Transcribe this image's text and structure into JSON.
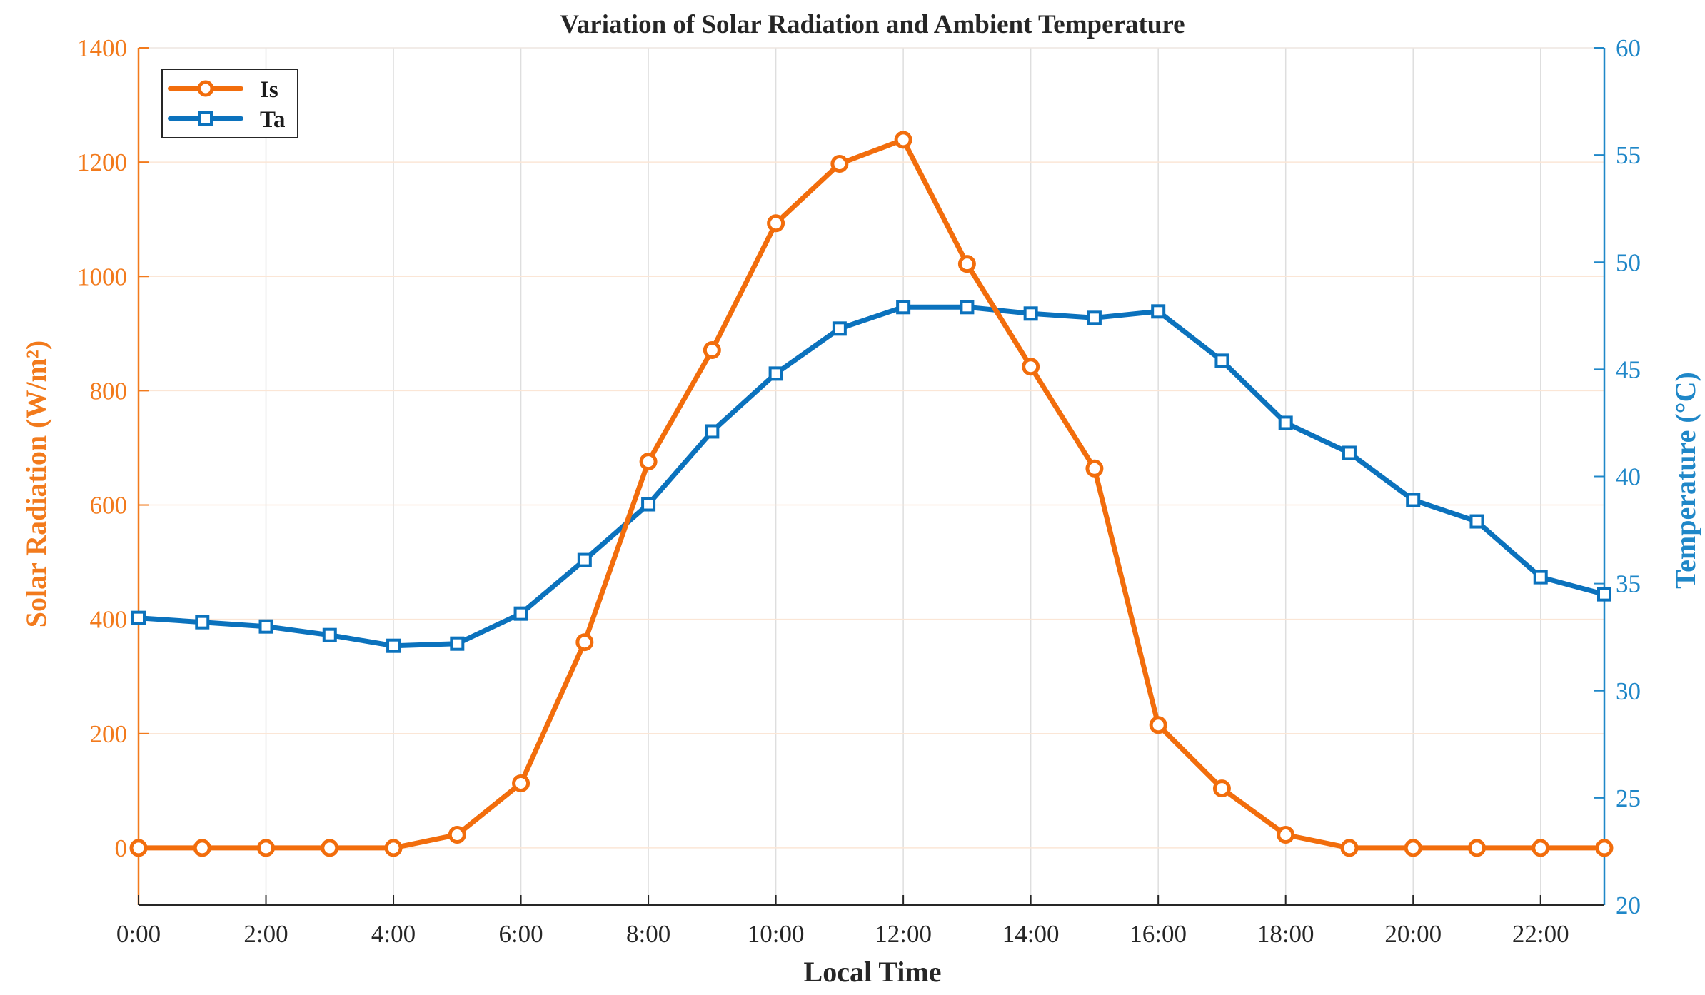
{
  "colors": {
    "is": "#f26d0c",
    "ta": "#0b72bd",
    "left_axis": "#f27a1c",
    "right_axis": "#1f87c8",
    "text": "#262626"
  },
  "chart_data": {
    "type": "line",
    "title": "Variation of Solar Radiation and Ambient Temperature",
    "xlabel": "Local Time",
    "ylabel_left": "Solar  Radiation  (W/m²)",
    "ylabel_right": "Temperature (°C)",
    "x": [
      0,
      1,
      2,
      3,
      4,
      5,
      6,
      7,
      8,
      9,
      10,
      11,
      12,
      13,
      14,
      15,
      16,
      17,
      18,
      19,
      20,
      21,
      22,
      23
    ],
    "xlim": [
      0,
      23
    ],
    "xticks": [
      0,
      2,
      4,
      6,
      8,
      10,
      12,
      14,
      16,
      18,
      20,
      22
    ],
    "xtick_labels": [
      "0:00",
      "2:00",
      "4:00",
      "6:00",
      "8:00",
      "10:00",
      "12:00",
      "14:00",
      "16:00",
      "18:00",
      "20:00",
      "22:00"
    ],
    "ylim_left": [
      -100,
      1400
    ],
    "yticks_left": [
      0,
      200,
      400,
      600,
      800,
      1000,
      1200,
      1400
    ],
    "ylim_right": [
      20,
      60
    ],
    "yticks_right": [
      20,
      25,
      30,
      35,
      40,
      45,
      50,
      55,
      60
    ],
    "grid": true,
    "legend_position": "top-left",
    "series": [
      {
        "name": "Is",
        "axis": "left",
        "marker": "circle",
        "values": [
          0,
          0,
          0,
          0,
          0,
          23,
          113,
          360,
          676,
          871,
          1093,
          1197,
          1239,
          1022,
          842,
          664,
          215,
          104,
          23,
          0,
          0,
          0,
          0,
          0
        ]
      },
      {
        "name": "Ta",
        "axis": "right",
        "marker": "square",
        "values": [
          33.4,
          33.2,
          33.0,
          32.6,
          32.1,
          32.2,
          33.6,
          36.1,
          38.7,
          42.1,
          44.8,
          46.9,
          47.9,
          47.9,
          47.6,
          47.4,
          47.7,
          45.4,
          42.5,
          41.1,
          38.9,
          37.9,
          35.3,
          34.5
        ]
      }
    ]
  }
}
